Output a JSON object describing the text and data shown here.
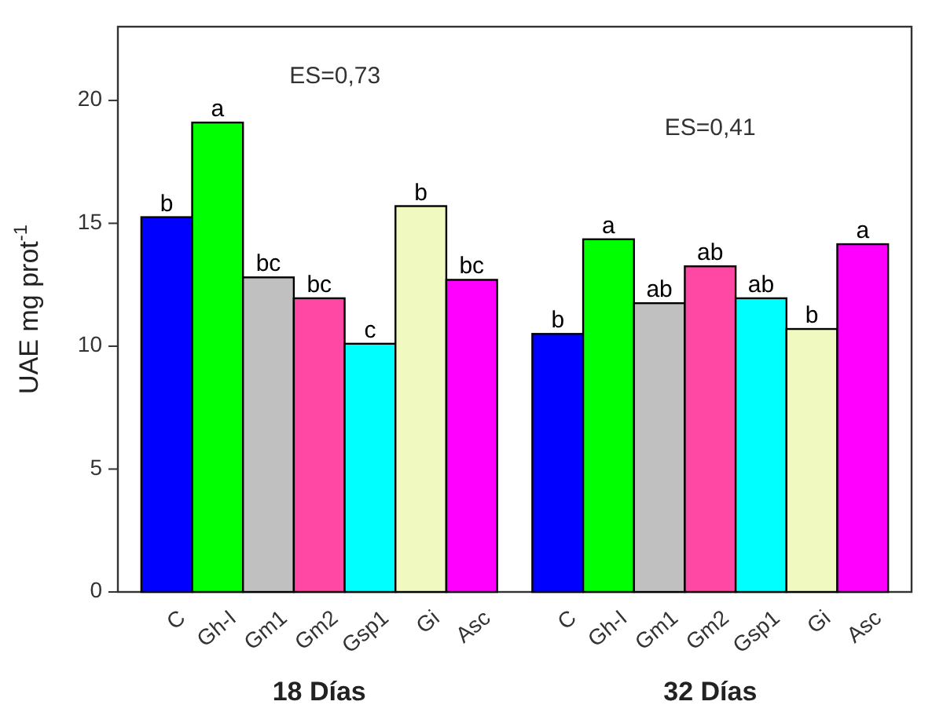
{
  "chart_data": {
    "type": "bar",
    "ylabel": "UAE mg prot$^{-1}$",
    "categories": [
      "18 Días",
      "32 Días"
    ],
    "ylim": [
      0,
      23
    ],
    "yticks": [
      0,
      5,
      10,
      15,
      20
    ],
    "grid": false,
    "annotations": [
      "ES=0,73",
      "ES=0,41"
    ],
    "series": [
      {
        "name": "C",
        "color": "#0000ff",
        "values": [
          15.25,
          10.5
        ],
        "value_labels": [
          "b",
          "b"
        ]
      },
      {
        "name": "Gh-I",
        "color": "#00ff00",
        "values": [
          19.1,
          14.35
        ],
        "value_labels": [
          "a",
          "a"
        ]
      },
      {
        "name": "Gm1",
        "color": "#c0c0c0",
        "values": [
          12.8,
          11.75
        ],
        "value_labels": [
          "bc",
          "ab"
        ]
      },
      {
        "name": "Gm2",
        "color": "#ff48a4",
        "values": [
          11.95,
          13.25
        ],
        "value_labels": [
          "bc",
          "ab"
        ]
      },
      {
        "name": "Gsp1",
        "color": "#00ffff",
        "values": [
          10.1,
          11.95
        ],
        "value_labels": [
          "c",
          "ab"
        ]
      },
      {
        "name": "Gi",
        "color": "#f0fac0",
        "values": [
          15.7,
          10.7
        ],
        "value_labels": [
          "b",
          "b"
        ]
      },
      {
        "name": "Asc",
        "color": "#ff00ff",
        "values": [
          12.7,
          14.15
        ],
        "value_labels": [
          "bc",
          "a"
        ]
      }
    ]
  }
}
